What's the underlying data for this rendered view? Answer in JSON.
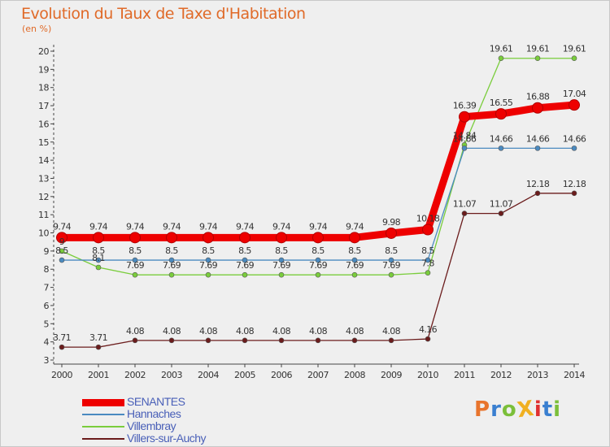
{
  "title": "Evolution du Taux de Taxe d'Habitation",
  "subtitle": "(en %)",
  "logo_text": "ProXiti",
  "logo_colors": [
    "#e8742c",
    "#3a7fd0",
    "#7bbf3a",
    "#f0b020",
    "#e03030",
    "#3a7fd0",
    "#7bbf3a"
  ],
  "chart_data": {
    "type": "line",
    "title": "Evolution du Taux de Taxe d'Habitation",
    "ylabel": "(en %)",
    "xlabel": "",
    "ylim": [
      3,
      20
    ],
    "yticks": [
      3,
      4,
      5,
      6,
      7,
      8,
      9,
      10,
      11,
      12,
      13,
      14,
      15,
      16,
      17,
      18,
      19,
      20
    ],
    "grid": false,
    "legend": "bottom-left",
    "categories": [
      "2000",
      "2001",
      "2002",
      "2003",
      "2004",
      "2005",
      "2006",
      "2007",
      "2008",
      "2009",
      "2010",
      "2011",
      "2012",
      "2013",
      "2014"
    ],
    "series": [
      {
        "name": "Villers-sur-Auchy",
        "color": "#6b1c1c",
        "values": [
          3.71,
          3.71,
          4.08,
          4.08,
          4.08,
          4.08,
          4.08,
          4.08,
          4.08,
          4.08,
          4.16,
          11.07,
          11.07,
          12.18,
          12.18
        ],
        "labels": [
          "3.71",
          "3.71",
          "4.08",
          "4.08",
          "4.08",
          "4.08",
          "4.08",
          "4.08",
          "4.08",
          "4.08",
          "4.16",
          "11.07",
          "11.07",
          "12.18",
          "12.18"
        ]
      },
      {
        "name": "Villembray",
        "color": "#7acd3c",
        "values": [
          9,
          8.1,
          7.69,
          7.69,
          7.69,
          7.69,
          7.69,
          7.69,
          7.69,
          7.69,
          7.8,
          14.84,
          19.61,
          19.61,
          19.61
        ],
        "labels": [
          "9",
          "8.1",
          "7.69",
          "7.69",
          "7.69",
          "7.69",
          "7.69",
          "7.69",
          "7.69",
          "7.69",
          "7.8",
          "14.84",
          "19.61",
          "19.61",
          "19.61"
        ]
      },
      {
        "name": "Hannaches",
        "color": "#4a8ac0",
        "values": [
          8.5,
          8.5,
          8.5,
          8.5,
          8.5,
          8.5,
          8.5,
          8.5,
          8.5,
          8.5,
          8.5,
          14.66,
          14.66,
          14.66,
          14.66
        ],
        "labels": [
          "8.5",
          "8.5",
          "8.5",
          "8.5",
          "8.5",
          "8.5",
          "8.5",
          "8.5",
          "8.5",
          "8.5",
          "8.5",
          "14.66",
          "14.66",
          "14.66",
          "14.66"
        ]
      },
      {
        "name": "SENANTES",
        "color": "#ee0000",
        "values": [
          9.74,
          9.74,
          9.74,
          9.74,
          9.74,
          9.74,
          9.74,
          9.74,
          9.74,
          9.98,
          10.18,
          16.39,
          16.55,
          16.88,
          17.04
        ],
        "labels": [
          "9.74",
          "9.74",
          "9.74",
          "9.74",
          "9.74",
          "9.74",
          "9.74",
          "9.74",
          "9.74",
          "9.98",
          "10.18",
          "16.39",
          "16.55",
          "16.88",
          "17.04"
        ]
      }
    ],
    "legend_entries": [
      "SENANTES",
      "Hannaches",
      "Villembray",
      "Villers-sur-Auchy"
    ]
  }
}
